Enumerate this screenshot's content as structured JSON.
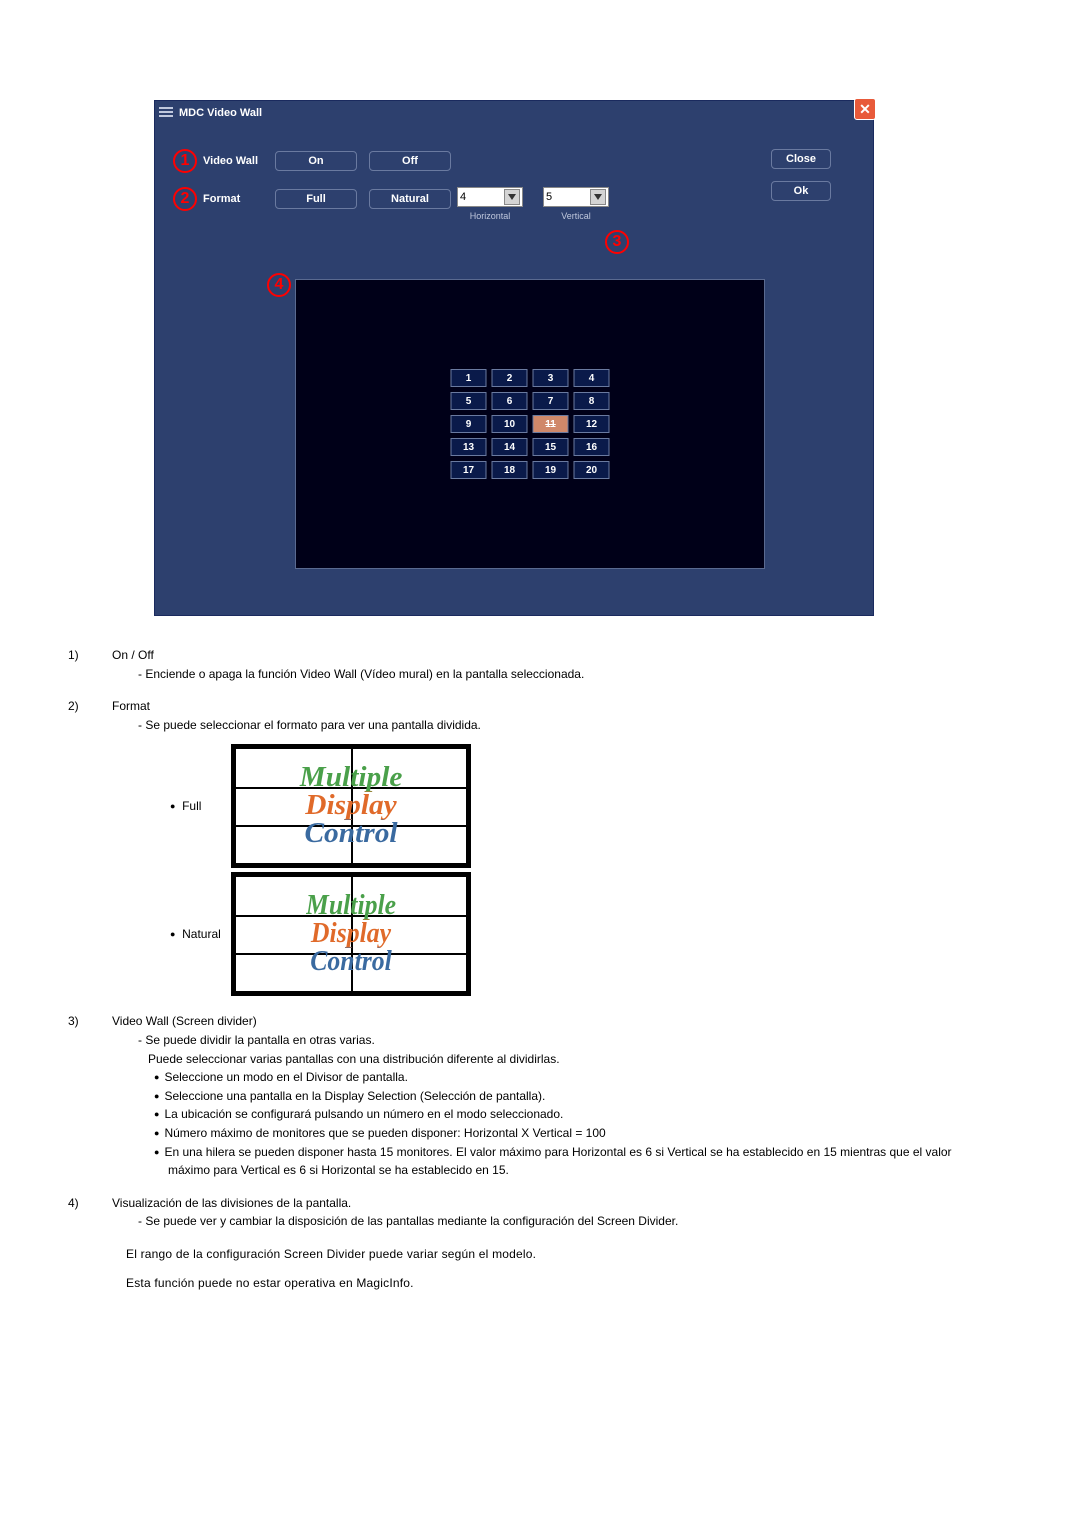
{
  "window": {
    "title": "MDC Video Wall",
    "buttons": {
      "close": "Close",
      "ok": "Ok"
    },
    "rows": {
      "video_wall": {
        "label": "Video Wall",
        "on": "On",
        "off": "Off"
      },
      "format": {
        "label": "Format",
        "full": "Full",
        "natural": "Natural"
      }
    },
    "hv": {
      "horizontal_label": "Horizontal",
      "vertical_label": "Vertical",
      "horizontal_value": "4",
      "vertical_value": "5"
    },
    "grid": {
      "cols": 4,
      "rows": 5,
      "selected": 11,
      "cells": [
        "1",
        "2",
        "3",
        "4",
        "5",
        "6",
        "7",
        "8",
        "9",
        "10",
        "11",
        "12",
        "13",
        "14",
        "15",
        "16",
        "17",
        "18",
        "19",
        "20"
      ]
    },
    "badges": {
      "b1": "1",
      "b2": "2",
      "b3": "3",
      "b4": "4"
    },
    "colors": {
      "window_bg": "#2d406e",
      "preview_bg": "#000018",
      "badge_ring": "#ff0000",
      "cell_bg": "#0a1a4a",
      "cell_selected_bg": "#d0886a",
      "close_bg": "#e85a3a"
    }
  },
  "doc": {
    "items": [
      {
        "num": "1)",
        "title": "On / Off",
        "dash": [
          "Enciende o apaga la función Video Wall (Vídeo mural) en la pantalla seleccionada."
        ]
      },
      {
        "num": "2)",
        "title": "Format",
        "dash": [
          "Se puede seleccionar el formato para ver una pantalla dividida."
        ],
        "format_rows": [
          {
            "label": "Full",
            "mode": "full"
          },
          {
            "label": "Natural",
            "mode": "natural"
          }
        ]
      },
      {
        "num": "3)",
        "title": "Video Wall (Screen divider)",
        "dash": [
          "Se puede dividir la pantalla en otras varias."
        ],
        "plain_after_dash": "Puede seleccionar varias pantallas con una distribución diferente al dividirlas.",
        "bullets": [
          "Seleccione un modo en el Divisor de pantalla.",
          "Seleccione una pantalla en la Display Selection (Selección de pantalla).",
          "La ubicación se configurará pulsando un número en el modo seleccionado.",
          "Número máximo de monitores que se pueden disponer: Horizontal X Vertical = 100",
          "En una hilera se pueden disponer hasta 15 monitores. El valor máximo para Horizontal es 6 si Vertical se ha establecido en 15 mientras que el valor máximo para Vertical es 6 si Horizontal se ha establecido en 15."
        ]
      },
      {
        "num": "4)",
        "title": "Visualización de las divisiones de la pantalla.",
        "dash": [
          "Se puede ver y cambiar la disposición de las pantallas mediante la configuración del Screen Divider."
        ]
      }
    ],
    "notes": [
      "El rango de la configuración Screen Divider puede variar según el modelo.",
      "Esta función puede no estar operativa en MagicInfo."
    ],
    "mdc_text": "Multiple\nDisplay\nControl"
  }
}
